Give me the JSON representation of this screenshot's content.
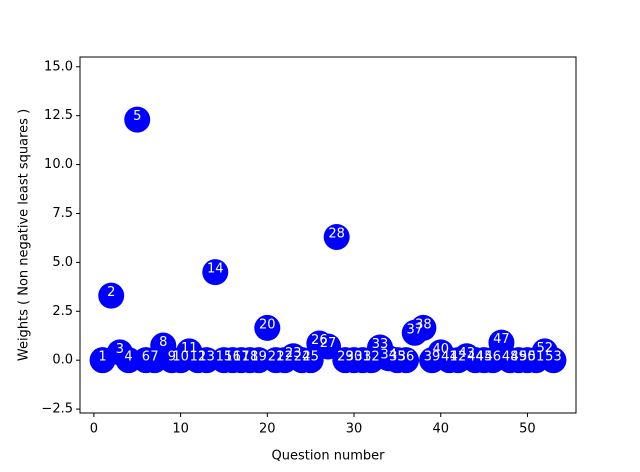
{
  "chart_data": {
    "type": "scatter",
    "xlabel": "Question number",
    "ylabel": "Weights ( Non negative least squares )",
    "x": [
      1,
      2,
      3,
      4,
      5,
      6,
      7,
      8,
      9,
      10,
      11,
      12,
      13,
      14,
      15,
      16,
      17,
      18,
      19,
      20,
      21,
      22,
      23,
      24,
      25,
      26,
      27,
      28,
      29,
      30,
      31,
      32,
      33,
      34,
      35,
      36,
      37,
      38,
      39,
      40,
      41,
      42,
      43,
      44,
      45,
      46,
      47,
      48,
      49,
      50,
      51,
      52,
      53
    ],
    "y": [
      0,
      3.3,
      0.4,
      0,
      12.3,
      0,
      0,
      0.75,
      0,
      0,
      0.45,
      0,
      0,
      4.5,
      0,
      0,
      0,
      0,
      0,
      1.65,
      0,
      0,
      0.2,
      0,
      0,
      0.85,
      0.7,
      6.3,
      0,
      0,
      0,
      0,
      0.65,
      0.1,
      0,
      0,
      1.4,
      1.65,
      0,
      0.4,
      0,
      0,
      0.2,
      0,
      0,
      0,
      0.9,
      0,
      0,
      0,
      0,
      0.45,
      0
    ],
    "color": "#0000ff",
    "label_color": "#ffffff",
    "xlim": [
      -1.6,
      55.6
    ],
    "ylim": [
      -2.7,
      15.5
    ],
    "xticks": [
      0,
      10,
      20,
      30,
      40,
      50
    ],
    "yticks": [
      {
        "value": -2.5,
        "label": "−2.5"
      },
      {
        "value": 0,
        "label": "0.0"
      },
      2.5,
      {
        "value": 5,
        "label": "5.0"
      },
      7.5,
      {
        "value": 10,
        "label": "10.0"
      },
      12.5,
      {
        "value": 15,
        "label": "15.0"
      }
    ],
    "grid": false
  }
}
